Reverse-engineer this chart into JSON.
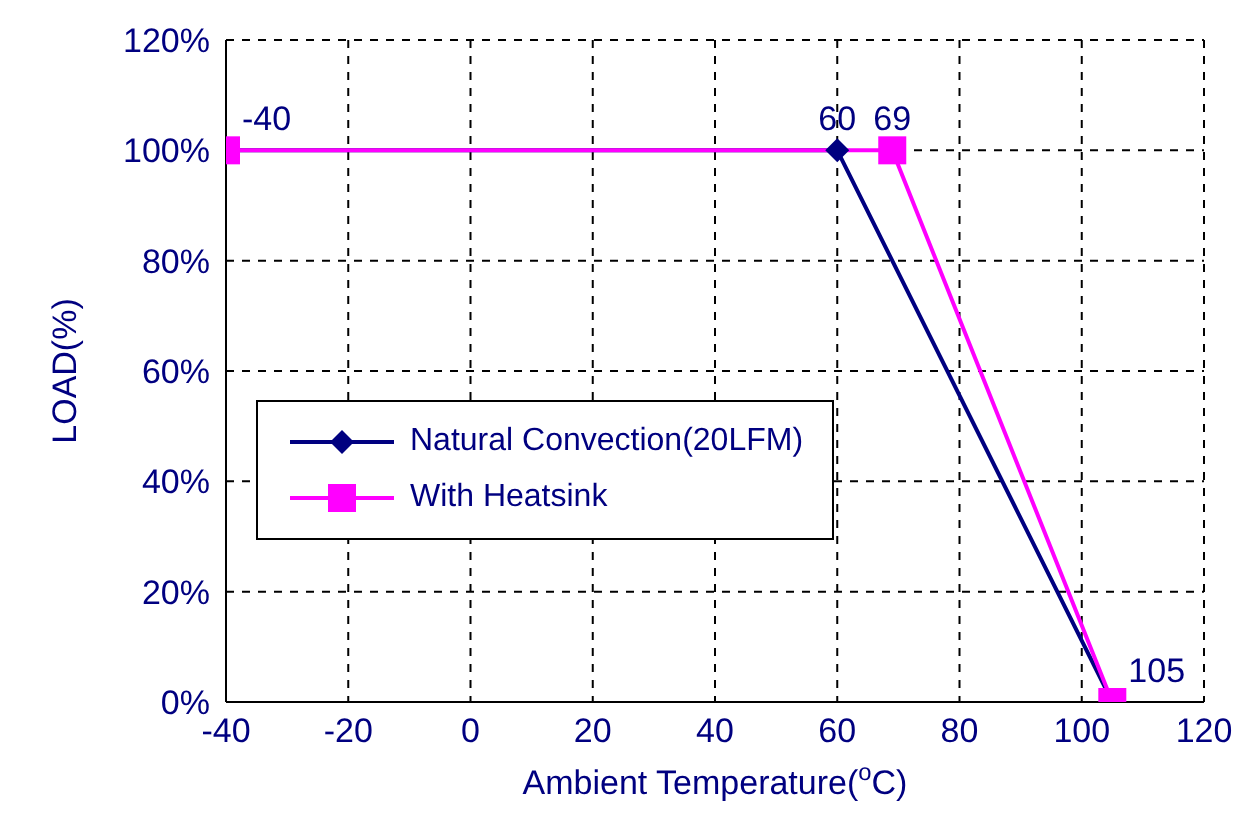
{
  "chart_data": {
    "type": "line",
    "xlabel": "Ambient Temperature($^{o}$C)",
    "ylabel": "LOAD(%)",
    "xlim": [
      -40,
      120
    ],
    "xticks": [
      -40,
      -20,
      0,
      20,
      40,
      60,
      80,
      100,
      120
    ],
    "ylim": [
      0,
      120
    ],
    "yticks": [
      {
        "value": 0,
        "label": "0%"
      },
      {
        "value": 20,
        "label": "20%"
      },
      {
        "value": 40,
        "label": "40%"
      },
      {
        "value": 60,
        "label": "60%"
      },
      {
        "value": 80,
        "label": "80%"
      },
      {
        "value": 100,
        "label": "100%"
      },
      {
        "value": 120,
        "label": "120%"
      }
    ],
    "grid": true,
    "legend": "left",
    "line_style": "solid",
    "series": [
      {
        "name": "Natural Convection(20LFM)",
        "color": "#000080",
        "marker": "diamond",
        "x": [
          -40,
          60,
          105
        ],
        "values": [
          100,
          100,
          0
        ]
      },
      {
        "name": "With Heatsink",
        "color": "#ff00ff",
        "marker": "square",
        "x": [
          -40,
          69,
          105
        ],
        "values": [
          100,
          100,
          0
        ]
      }
    ],
    "annotations": [
      {
        "text": "-40",
        "x": -40,
        "y": 100
      },
      {
        "text": "60",
        "x": 60,
        "y": 100
      },
      {
        "text": "69",
        "x": 69,
        "y": 100
      },
      {
        "text": "105",
        "x": 105,
        "y": 0
      }
    ]
  }
}
